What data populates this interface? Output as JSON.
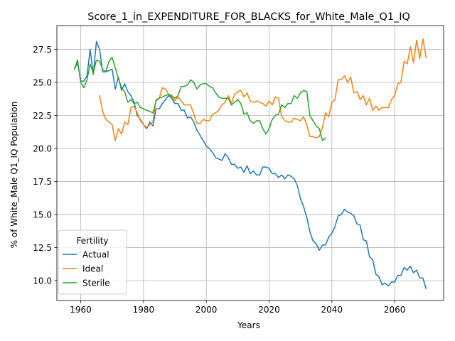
{
  "chart_data": {
    "type": "line",
    "title": "Score_1_in_EXPENDITURE_FOR_BLACKS_for_White_Male_Q1_IQ",
    "xlabel": "Years",
    "ylabel": "% of White_Male Q1_IQ Population",
    "xlim": [
      1952.4,
      2075.6
    ],
    "ylim": [
      8.5,
      29.3
    ],
    "xticks": [
      1960,
      1980,
      2000,
      2020,
      2040,
      2060
    ],
    "yticks": [
      10.0,
      12.5,
      15.0,
      17.5,
      20.0,
      22.5,
      25.0,
      27.5
    ],
    "grid": true,
    "legend": {
      "title": "Fertility",
      "placement": "lower-left"
    },
    "series": [
      {
        "name": "Actual",
        "color": "#1f77b4",
        "x": [
          1958,
          1959,
          1960,
          1961,
          1962,
          1963,
          1964,
          1965,
          1966,
          1967,
          1968,
          1969,
          1970,
          1971,
          1972,
          1973,
          1974,
          1975,
          1976,
          1977,
          1978,
          1979,
          1980,
          1981,
          1982,
          1983,
          1984,
          1985,
          1986,
          1987,
          1988,
          1989,
          1990,
          1991,
          1992,
          1993,
          1994,
          1995,
          1996,
          1997,
          1998,
          1999,
          2000,
          2001,
          2002,
          2003,
          2004,
          2005,
          2006,
          2007,
          2008,
          2009,
          2010,
          2011,
          2012,
          2013,
          2014,
          2015,
          2016,
          2017,
          2018,
          2019,
          2020,
          2021,
          2022,
          2023,
          2024,
          2025,
          2026,
          2027,
          2028,
          2029,
          2030,
          2031,
          2032,
          2033,
          2034,
          2035,
          2036,
          2037,
          2038,
          2039,
          2040,
          2041,
          2042,
          2043,
          2044,
          2045,
          2046,
          2047,
          2048,
          2049,
          2050,
          2051,
          2052,
          2053,
          2054,
          2055,
          2056,
          2057,
          2058,
          2059,
          2060,
          2061,
          2062,
          2063,
          2064,
          2065,
          2066,
          2067,
          2068,
          2069,
          2070
        ],
        "y": [
          26.0,
          26.5,
          25.1,
          25.1,
          25.5,
          27.5,
          25.6,
          28.1,
          27.5,
          25.8,
          25.8,
          25.9,
          26.0,
          24.5,
          25.4,
          24.4,
          24.9,
          24.3,
          24.0,
          23.5,
          22.5,
          22.2,
          21.8,
          21.5,
          22.0,
          21.7,
          23.0,
          23.0,
          23.4,
          23.7,
          24.0,
          23.8,
          23.4,
          23.4,
          22.9,
          22.9,
          22.3,
          22.4,
          22.0,
          21.4,
          21.0,
          20.6,
          20.2,
          20.0,
          19.7,
          19.3,
          19.2,
          19.1,
          19.6,
          19.3,
          18.8,
          18.8,
          18.5,
          18.6,
          18.2,
          18.7,
          18.1,
          18.3,
          18.0,
          18.0,
          18.6,
          18.6,
          18.5,
          18.1,
          18.1,
          17.8,
          18.0,
          17.7,
          18.0,
          17.9,
          17.7,
          17.2,
          16.2,
          15.6,
          14.8,
          13.7,
          13.0,
          12.8,
          12.3,
          12.7,
          12.7,
          13.3,
          13.6,
          14.1,
          14.9,
          15.0,
          15.4,
          15.2,
          15.1,
          14.9,
          14.3,
          14.2,
          13.1,
          13.0,
          11.8,
          11.6,
          10.5,
          10.3,
          9.7,
          9.8,
          9.6,
          9.9,
          9.9,
          10.4,
          10.4,
          11.0,
          10.8,
          11.1,
          10.6,
          10.8,
          10.2,
          10.2,
          9.4
        ]
      },
      {
        "name": "Ideal",
        "color": "#ff7f0e",
        "x": [
          1966,
          1967,
          1968,
          1969,
          1970,
          1971,
          1972,
          1973,
          1974,
          1975,
          1976,
          1977,
          1978,
          1979,
          1980,
          1981,
          1982,
          1983,
          1984,
          1985,
          1986,
          1987,
          1988,
          1989,
          1990,
          1991,
          1992,
          1993,
          1994,
          1995,
          1996,
          1997,
          1998,
          1999,
          2000,
          2001,
          2002,
          2003,
          2004,
          2005,
          2006,
          2007,
          2008,
          2009,
          2010,
          2011,
          2012,
          2013,
          2014,
          2015,
          2016,
          2017,
          2018,
          2019,
          2020,
          2021,
          2022,
          2023,
          2024,
          2025,
          2026,
          2027,
          2028,
          2029,
          2030,
          2031,
          2032,
          2033,
          2034,
          2035,
          2036,
          2037,
          2038,
          2039,
          2040,
          2041,
          2042,
          2043,
          2044,
          2045,
          2046,
          2047,
          2048,
          2049,
          2050,
          2051,
          2052,
          2053,
          2054,
          2055,
          2056,
          2057,
          2058,
          2059,
          2060,
          2061,
          2062,
          2063,
          2064,
          2065,
          2066,
          2067,
          2068,
          2069,
          2070
        ],
        "y": [
          24.0,
          22.8,
          22.2,
          22.0,
          21.8,
          20.6,
          21.5,
          21.1,
          22.0,
          21.8,
          23.1,
          23.2,
          22.7,
          22.1,
          21.8,
          21.6,
          21.8,
          22.0,
          23.7,
          23.8,
          24.6,
          24.5,
          24.1,
          23.9,
          23.6,
          23.9,
          23.6,
          23.3,
          23.3,
          23.3,
          22.6,
          21.9,
          21.9,
          22.2,
          22.1,
          22.1,
          22.6,
          22.7,
          22.9,
          23.3,
          23.5,
          24.0,
          23.4,
          24.1,
          24.3,
          24.4,
          23.9,
          24.2,
          23.6,
          23.5,
          23.6,
          23.5,
          23.4,
          23.2,
          23.6,
          23.3,
          23.9,
          23.8,
          22.4,
          22.1,
          22.0,
          22.0,
          22.3,
          22.2,
          22.1,
          22.4,
          21.8,
          20.9,
          20.9,
          20.8,
          20.9,
          21.6,
          22.7,
          22.4,
          23.5,
          23.7,
          25.2,
          25.2,
          25.5,
          25.0,
          25.4,
          24.2,
          24.3,
          23.7,
          24.0,
          23.3,
          23.8,
          22.9,
          23.2,
          22.9,
          23.1,
          23.1,
          23.1,
          23.7,
          24.0,
          24.9,
          25.0,
          26.6,
          26.4,
          27.7,
          26.5,
          28.2,
          26.8,
          28.3,
          26.9
        ]
      },
      {
        "name": "Sterile",
        "color": "#2ca02c",
        "x": [
          1958,
          1959,
          1960,
          1961,
          1962,
          1963,
          1964,
          1965,
          1966,
          1967,
          1968,
          1969,
          1970,
          1971,
          1972,
          1973,
          1974,
          1975,
          1976,
          1977,
          1978,
          1979,
          1980,
          1981,
          1982,
          1983,
          1984,
          1985,
          1986,
          1987,
          1988,
          1989,
          1990,
          1991,
          1992,
          1993,
          1994,
          1995,
          1996,
          1997,
          1998,
          1999,
          2000,
          2001,
          2002,
          2003,
          2004,
          2005,
          2006,
          2007,
          2008,
          2009,
          2010,
          2011,
          2012,
          2013,
          2014,
          2015,
          2016,
          2017,
          2018,
          2019,
          2020,
          2021,
          2022,
          2023,
          2024,
          2025,
          2026,
          2027,
          2028,
          2029,
          2030,
          2031,
          2032,
          2033,
          2034,
          2035,
          2036,
          2037,
          2038
        ],
        "y": [
          26.0,
          26.7,
          25.0,
          24.6,
          25.2,
          26.4,
          25.7,
          26.7,
          26.6,
          26.0,
          25.8,
          26.6,
          26.9,
          26.1,
          25.3,
          24.6,
          24.3,
          23.5,
          23.7,
          23.4,
          23.5,
          23.1,
          23.0,
          22.9,
          22.8,
          22.7,
          23.6,
          23.8,
          23.9,
          24.0,
          24.1,
          24.0,
          23.8,
          24.0,
          24.7,
          24.7,
          24.8,
          25.2,
          25.0,
          24.5,
          24.8,
          24.9,
          24.9,
          24.7,
          24.6,
          24.2,
          23.9,
          23.8,
          23.8,
          23.8,
          23.3,
          23.5,
          23.7,
          23.4,
          22.6,
          22.7,
          22.1,
          21.9,
          22.1,
          22.1,
          21.5,
          21.1,
          21.5,
          22.2,
          22.5,
          22.6,
          23.3,
          23.1,
          23.4,
          23.4,
          24.0,
          23.8,
          24.2,
          24.4,
          24.3,
          22.5,
          22.1,
          21.7,
          21.5,
          20.6,
          20.8
        ]
      }
    ]
  }
}
